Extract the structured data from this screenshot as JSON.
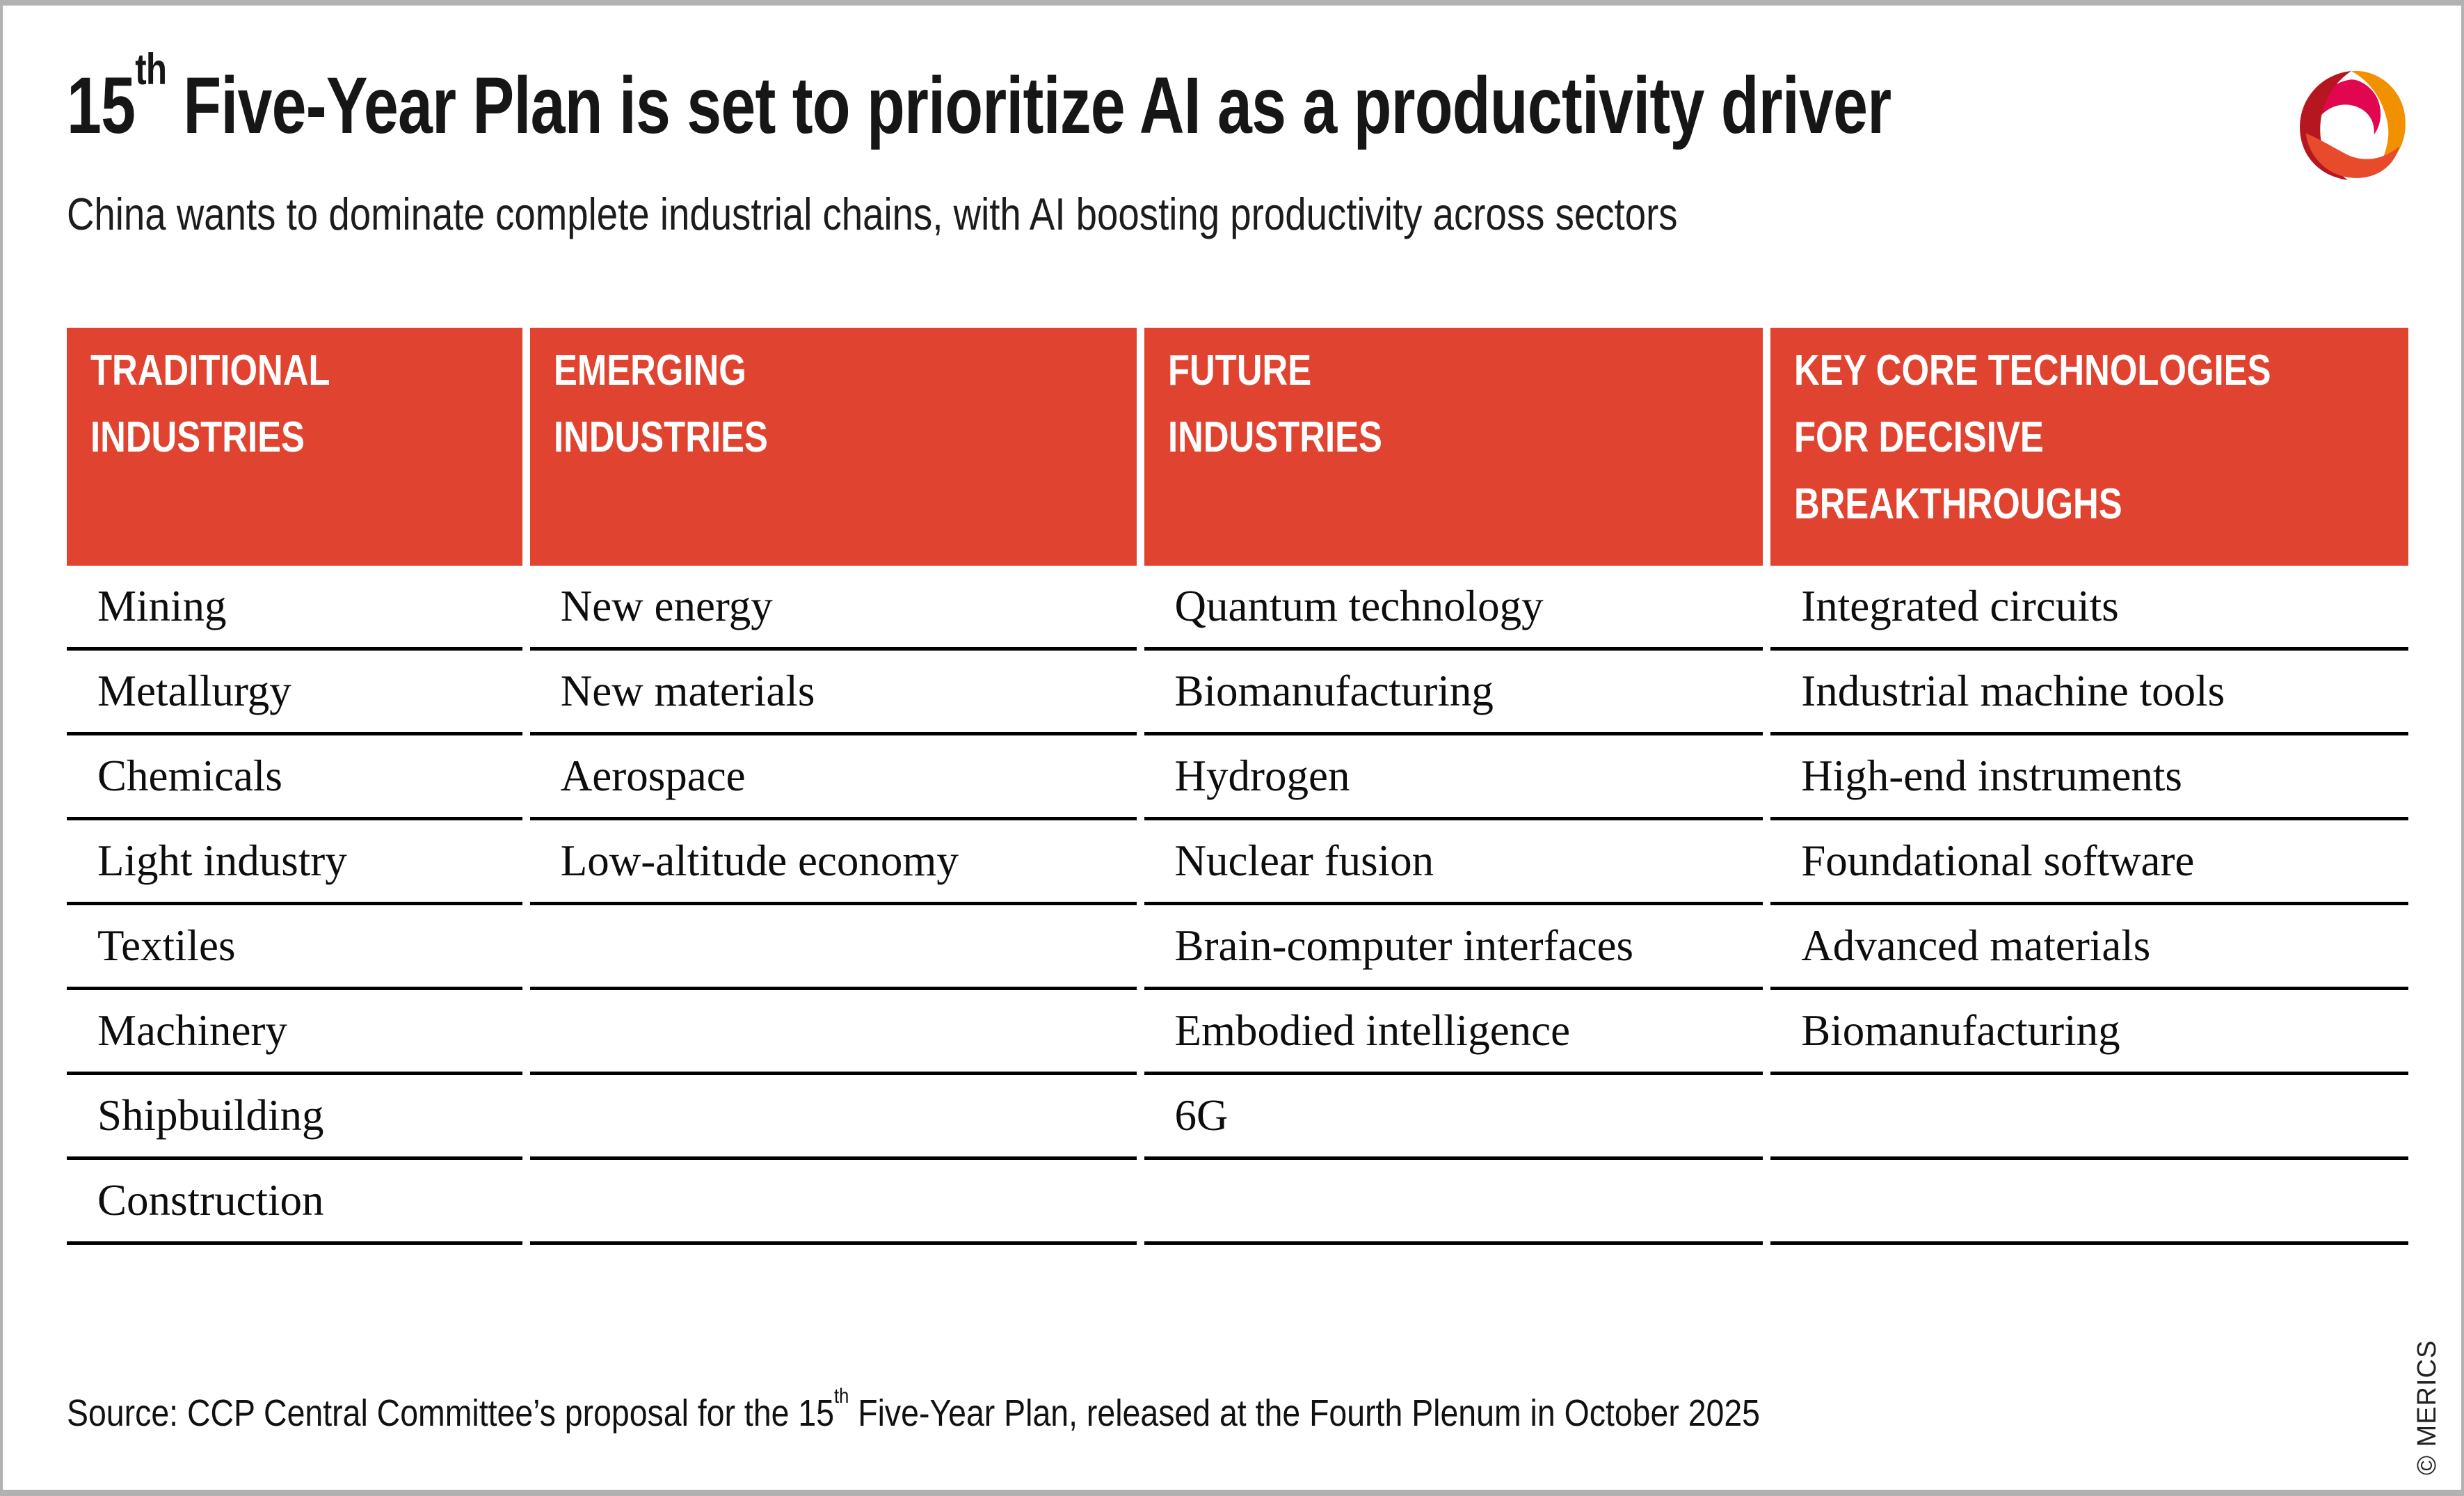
{
  "page": {
    "title": {
      "prefix": "15",
      "sup": "th",
      "rest": " Five-Year Plan is set to prioritize AI as a productivity driver"
    },
    "subtitle": "China wants to dominate complete industrial chains, with AI boosting productivity across sectors",
    "source": {
      "prefix": "Source: CCP Central Committee’s proposal for the 15",
      "sup": "th",
      "suffix": " Five-Year Plan, released at the Fourth Plenum in October 2025"
    },
    "copyright": "© MERICS"
  },
  "colors": {
    "accent_red": "#E04330",
    "line_black": "#000000",
    "frame_grey": "#B2B2B2"
  },
  "logo": {
    "name": "merics-logo",
    "palette": {
      "dark_red": "#B5161F",
      "magenta": "#E2054F",
      "orange": "#F29100",
      "red_orange": "#E84B2C"
    }
  },
  "table": {
    "rows": 8,
    "columns": [
      {
        "header_lines": [
          "TRADITIONAL",
          "INDUSTRIES"
        ],
        "items": [
          "Mining",
          "Metallurgy",
          "Chemicals",
          "Light industry",
          "Textiles",
          "Machinery",
          "Shipbuilding",
          "Construction"
        ]
      },
      {
        "header_lines": [
          "EMERGING",
          "INDUSTRIES"
        ],
        "items": [
          "New energy",
          "New materials",
          "Aerospace",
          "Low-altitude economy",
          "",
          "",
          "",
          ""
        ]
      },
      {
        "header_lines": [
          "FUTURE",
          "INDUSTRIES"
        ],
        "items": [
          "Quantum technology",
          "Biomanufacturing",
          "Hydrogen",
          "Nuclear fusion",
          "Brain-computer interfaces",
          "Embodied intelligence",
          "6G",
          ""
        ]
      },
      {
        "header_lines": [
          "KEY CORE TECHNOLOGIES",
          "FOR DECISIVE",
          "BREAKTHROUGHS"
        ],
        "items": [
          "Integrated circuits",
          "Industrial machine tools",
          "High-end instruments",
          "Foundational software",
          "Advanced materials",
          "Biomanufacturing",
          "",
          ""
        ]
      }
    ]
  }
}
